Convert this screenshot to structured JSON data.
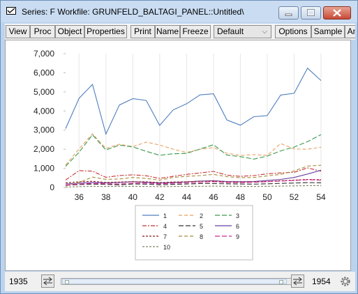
{
  "window": {
    "title": "Series: F   Workfile: GRUNFELD_BALTAGI_PANEL::Untitled\\"
  },
  "toolbar": {
    "buttons": [
      "View",
      "Proc",
      "Object",
      "Properties",
      "Print",
      "Name",
      "Freeze"
    ],
    "select_value": "Default",
    "buttons_right": [
      "Options",
      "Sample",
      "An"
    ]
  },
  "chart_data": {
    "type": "line",
    "x": [
      35,
      36,
      37,
      38,
      39,
      40,
      41,
      42,
      43,
      44,
      45,
      46,
      47,
      48,
      49,
      50,
      51,
      52,
      53,
      54
    ],
    "x_tick_labels": [
      "36",
      "38",
      "40",
      "42",
      "44",
      "46",
      "48",
      "50",
      "52",
      "54"
    ],
    "y_tick_labels": [
      "0",
      "1,000",
      "2,000",
      "3,000",
      "4,000",
      "5,000",
      "6,000",
      "7,000"
    ],
    "ylim": [
      0,
      7000
    ],
    "grid": "vertical",
    "legend_position": "bottom-center",
    "series": [
      {
        "name": "1",
        "color": "#4f7fbf",
        "dash": "solid",
        "values": [
          3078,
          4662,
          5387,
          2792,
          4313,
          4644,
          4551,
          3244,
          4053,
          4380,
          4841,
          4901,
          3526,
          3254,
          3701,
          3755,
          4833,
          4925,
          6241,
          5593
        ]
      },
      {
        "name": "2",
        "color": "#e8a060",
        "dash": "dash",
        "values": [
          1171,
          2016,
          2803,
          2040,
          2256,
          2132,
          2372,
          2218,
          2001,
          1826,
          1996,
          2080,
          1788,
          1675,
          1714,
          1676,
          2293,
          2012,
          1998,
          2105
        ]
      },
      {
        "name": "3",
        "color": "#3a9a4a",
        "dash": "longdash",
        "values": [
          1104,
          1840,
          2754,
          1960,
          2212,
          2120,
          1890,
          1680,
          1760,
          1780,
          2010,
          2230,
          1690,
          1610,
          1480,
          1640,
          1910,
          2110,
          2400,
          2760
        ]
      },
      {
        "name": "4",
        "color": "#c83232",
        "dash": "dashdot",
        "values": [
          386,
          880,
          850,
          530,
          620,
          660,
          610,
          470,
          580,
          680,
          760,
          840,
          640,
          580,
          620,
          710,
          760,
          790,
          1020,
          850
        ]
      },
      {
        "name": "5",
        "color": "#303030",
        "dash": "longdash",
        "values": [
          110,
          150,
          170,
          160,
          130,
          180,
          170,
          140,
          160,
          180,
          200,
          200,
          190,
          180,
          170,
          190,
          210,
          230,
          250,
          240
        ]
      },
      {
        "name": "6",
        "color": "#6a3fa0",
        "dash": "solid",
        "values": [
          180,
          220,
          260,
          240,
          260,
          300,
          270,
          230,
          260,
          290,
          330,
          350,
          310,
          300,
          310,
          360,
          420,
          520,
          700,
          900
        ]
      },
      {
        "name": "7",
        "color": "#8b1a1a",
        "dash": "shortdash",
        "values": [
          240,
          290,
          320,
          260,
          280,
          300,
          290,
          250,
          280,
          300,
          320,
          330,
          290,
          280,
          290,
          310,
          350,
          380,
          420,
          400
        ]
      },
      {
        "name": "8",
        "color": "#a88a3a",
        "dash": "dash",
        "values": [
          80,
          260,
          540,
          420,
          440,
          520,
          470,
          380,
          520,
          580,
          620,
          680,
          560,
          510,
          520,
          600,
          680,
          860,
          1120,
          1160
        ]
      },
      {
        "name": "9",
        "color": "#d02890",
        "dash": "longdash",
        "values": [
          120,
          170,
          210,
          190,
          180,
          220,
          230,
          190,
          220,
          240,
          260,
          300,
          260,
          250,
          270,
          300,
          330,
          360,
          400,
          380
        ]
      },
      {
        "name": "10",
        "color": "#808060",
        "dash": "shortdash",
        "values": [
          20,
          40,
          60,
          50,
          50,
          60,
          50,
          40,
          50,
          60,
          60,
          70,
          60,
          55,
          50,
          60,
          70,
          80,
          90,
          95
        ]
      }
    ]
  },
  "status": {
    "start_year": "1935",
    "end_year": "1954"
  },
  "colors": {
    "chrome": "#bcd3ee",
    "toolbar": "#f0f0f0",
    "close_button": "#c74a36"
  }
}
